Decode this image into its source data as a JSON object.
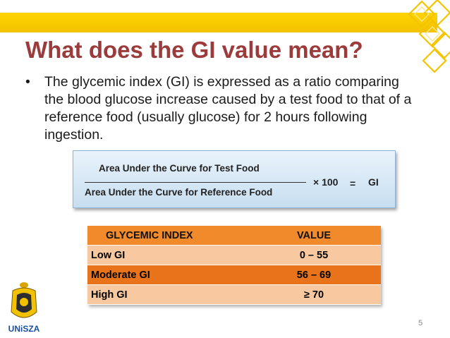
{
  "slide": {
    "title": "What does the GI value mean?",
    "bullet_symbol": "•",
    "bullet_text": "The glycemic index (GI) is expressed as a ratio comparing the blood glucose increase caused by a test food to that of a reference food (usually glucose) for 2 hours following ingestion.",
    "page_number": "5"
  },
  "formula": {
    "numerator": "Area Under the Curve for Test Food",
    "denominator": "Area Under the Curve for Reference Food",
    "multiplier": "× 100",
    "equals": "=",
    "result": "GI"
  },
  "table": {
    "headers": [
      "GLYCEMIC INDEX",
      "VALUE"
    ],
    "rows": [
      [
        "Low GI",
        "0 – 55"
      ],
      [
        "Moderate GI",
        "56 – 69"
      ],
      [
        "High GI",
        "≥ 70"
      ]
    ]
  },
  "logo": {
    "text": "UNiSZA",
    "icon": "university-crest-icon"
  },
  "colors": {
    "title": "#9b3b3b",
    "band": "#ffd400",
    "table_header": "#f08a2a",
    "table_row_light": "#f8c9a0",
    "table_row_dark": "#e9731a"
  }
}
